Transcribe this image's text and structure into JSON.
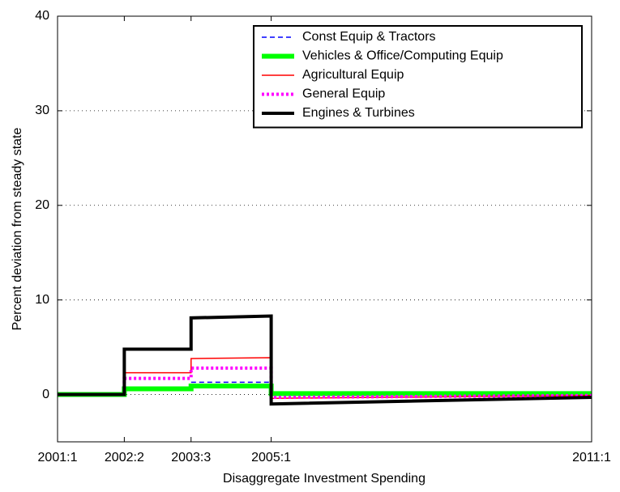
{
  "chart_data": {
    "type": "line",
    "xlabel": "Disaggregate Investment Spending",
    "ylabel": "Percent deviation from steady state",
    "x": [
      0,
      5,
      5,
      10,
      10,
      16,
      16,
      40
    ],
    "xlim": [
      0,
      40
    ],
    "xticks": [
      {
        "value": 0,
        "label": "2001:1"
      },
      {
        "value": 5,
        "label": "2002:2"
      },
      {
        "value": 10,
        "label": "2003:3"
      },
      {
        "value": 16,
        "label": "2005:1"
      },
      {
        "value": 40,
        "label": "2011:1"
      }
    ],
    "ylim": [
      -5,
      40
    ],
    "yticks": [
      0,
      10,
      20,
      30,
      40
    ],
    "grid": true,
    "legend": "upper right",
    "series": [
      {
        "name": "Const Equip & Tractors",
        "color": "#0000ff",
        "style": "dashed",
        "width": 1.5,
        "values": [
          0,
          0,
          0.6,
          0.6,
          1.3,
          1.3,
          -0.1,
          0
        ]
      },
      {
        "name": "Vehicles & Office/Computing Equip",
        "color": "#00ff00",
        "style": "solid",
        "width": 6,
        "values": [
          0,
          0,
          0.6,
          0.6,
          0.9,
          0.9,
          0.1,
          0.1
        ]
      },
      {
        "name": "Agricultural Equip",
        "color": "#ff0000",
        "style": "solid",
        "width": 1.5,
        "values": [
          0,
          0,
          2.3,
          2.3,
          3.8,
          3.9,
          -0.4,
          -0.1
        ]
      },
      {
        "name": "General Equip",
        "color": "#ff00ff",
        "style": "dotted",
        "width": 4,
        "values": [
          0,
          0,
          1.7,
          1.7,
          2.8,
          2.8,
          -0.3,
          -0.1
        ]
      },
      {
        "name": "Engines & Turbines",
        "color": "#000000",
        "style": "solid",
        "width": 4,
        "values": [
          0,
          0,
          4.8,
          4.8,
          8.1,
          8.3,
          -1,
          -0.3
        ]
      }
    ]
  }
}
